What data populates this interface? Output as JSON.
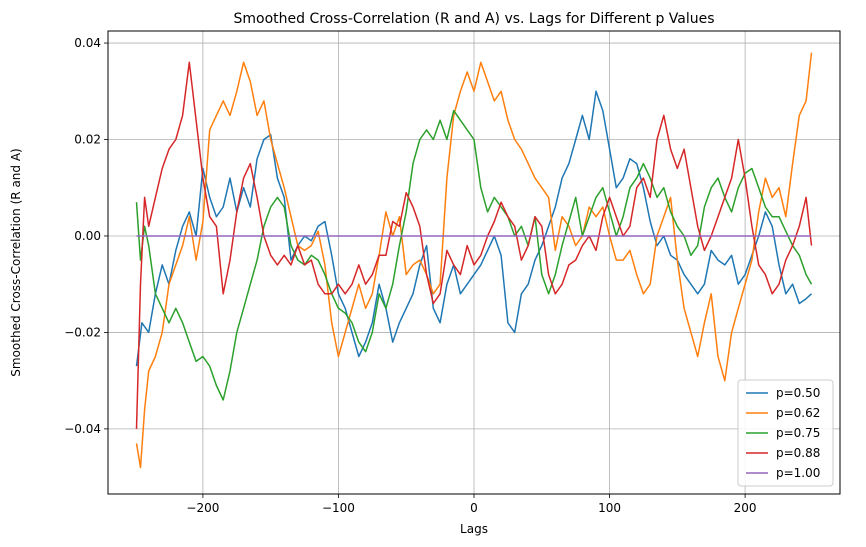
{
  "chart_data": {
    "type": "line",
    "title": "Smoothed Cross-Correlation (R and A) vs. Lags for Different p Values",
    "xlabel": "Lags",
    "ylabel": "Smoothed Cross-Correlation (R and A)",
    "xlim": [
      -270,
      270
    ],
    "ylim": [
      -0.0535,
      0.0425
    ],
    "xticks": [
      -200,
      -100,
      0,
      100,
      200
    ],
    "xtick_labels": [
      "−200",
      "−100",
      "0",
      "100",
      "200"
    ],
    "yticks": [
      -0.04,
      -0.02,
      0.0,
      0.02,
      0.04
    ],
    "ytick_labels": [
      "−0.04",
      "−0.02",
      "0.00",
      "0.02",
      "0.04"
    ],
    "grid": true,
    "legend_position": "bottom-right",
    "series": [
      {
        "name": "p=0.50",
        "color": "#1f77b4",
        "x": [
          -249,
          -245,
          -240,
          -235,
          -230,
          -225,
          -220,
          -215,
          -210,
          -205,
          -200,
          -195,
          -190,
          -185,
          -180,
          -175,
          -170,
          -165,
          -160,
          -155,
          -150,
          -145,
          -140,
          -135,
          -130,
          -125,
          -120,
          -115,
          -110,
          -105,
          -100,
          -95,
          -90,
          -85,
          -80,
          -75,
          -70,
          -65,
          -60,
          -55,
          -50,
          -45,
          -40,
          -35,
          -30,
          -25,
          -20,
          -15,
          -10,
          -5,
          0,
          5,
          10,
          15,
          20,
          25,
          30,
          35,
          40,
          45,
          50,
          55,
          60,
          65,
          70,
          75,
          80,
          85,
          90,
          95,
          100,
          105,
          110,
          115,
          120,
          125,
          130,
          135,
          140,
          145,
          150,
          155,
          160,
          165,
          170,
          175,
          180,
          185,
          190,
          195,
          200,
          205,
          210,
          215,
          220,
          225,
          230,
          235,
          240,
          245,
          249
        ],
        "values": [
          -0.027,
          -0.018,
          -0.02,
          -0.012,
          -0.006,
          -0.01,
          -0.003,
          0.002,
          0.005,
          0.0,
          0.014,
          0.008,
          0.004,
          0.006,
          0.012,
          0.005,
          0.01,
          0.006,
          0.016,
          0.02,
          0.021,
          0.012,
          0.008,
          -0.005,
          -0.002,
          0.0,
          -0.001,
          0.002,
          0.003,
          -0.004,
          -0.012,
          -0.015,
          -0.02,
          -0.025,
          -0.022,
          -0.018,
          -0.01,
          -0.015,
          -0.022,
          -0.018,
          -0.015,
          -0.012,
          -0.006,
          -0.002,
          -0.015,
          -0.018,
          -0.01,
          -0.006,
          -0.012,
          -0.01,
          -0.008,
          -0.006,
          -0.003,
          0.0,
          -0.004,
          -0.018,
          -0.02,
          -0.012,
          -0.01,
          -0.005,
          -0.002,
          0.002,
          0.006,
          0.012,
          0.015,
          0.02,
          0.025,
          0.02,
          0.03,
          0.026,
          0.018,
          0.01,
          0.012,
          0.016,
          0.015,
          0.01,
          0.003,
          -0.002,
          0.0,
          -0.004,
          -0.005,
          -0.008,
          -0.01,
          -0.012,
          -0.01,
          -0.003,
          -0.005,
          -0.006,
          -0.004,
          -0.01,
          -0.008,
          -0.004,
          0.0,
          0.005,
          0.002,
          -0.006,
          -0.012,
          -0.01,
          -0.014,
          -0.013,
          -0.012
        ]
      },
      {
        "name": "p=0.62",
        "color": "#ff7f0e",
        "x": [
          -249,
          -246,
          -243,
          -240,
          -235,
          -230,
          -225,
          -220,
          -215,
          -210,
          -205,
          -200,
          -195,
          -190,
          -185,
          -180,
          -175,
          -170,
          -165,
          -160,
          -155,
          -150,
          -145,
          -140,
          -135,
          -130,
          -125,
          -120,
          -115,
          -110,
          -105,
          -100,
          -95,
          -90,
          -85,
          -80,
          -75,
          -70,
          -65,
          -60,
          -55,
          -50,
          -45,
          -40,
          -35,
          -30,
          -25,
          -20,
          -15,
          -10,
          -5,
          0,
          5,
          10,
          15,
          20,
          25,
          30,
          35,
          40,
          45,
          50,
          55,
          60,
          65,
          70,
          75,
          80,
          85,
          90,
          95,
          100,
          105,
          110,
          115,
          120,
          125,
          130,
          135,
          140,
          145,
          150,
          155,
          160,
          165,
          170,
          175,
          180,
          185,
          190,
          195,
          200,
          205,
          210,
          215,
          220,
          225,
          230,
          235,
          240,
          245,
          249
        ],
        "values": [
          -0.043,
          -0.048,
          -0.036,
          -0.028,
          -0.025,
          -0.02,
          -0.01,
          -0.006,
          -0.002,
          0.004,
          -0.005,
          0.003,
          0.022,
          0.025,
          0.028,
          0.025,
          0.03,
          0.036,
          0.032,
          0.025,
          0.028,
          0.02,
          0.015,
          0.01,
          0.004,
          -0.002,
          -0.003,
          -0.002,
          0.001,
          -0.006,
          -0.018,
          -0.025,
          -0.02,
          -0.015,
          -0.01,
          -0.015,
          -0.012,
          -0.004,
          0.005,
          0.0,
          0.004,
          -0.008,
          -0.006,
          -0.005,
          -0.008,
          -0.012,
          -0.01,
          0.012,
          0.025,
          0.03,
          0.034,
          0.03,
          0.036,
          0.032,
          0.028,
          0.03,
          0.024,
          0.02,
          0.018,
          0.015,
          0.012,
          0.01,
          0.008,
          -0.003,
          0.004,
          0.002,
          -0.002,
          0.0,
          0.006,
          0.004,
          0.006,
          0.0,
          -0.005,
          -0.005,
          -0.003,
          -0.008,
          -0.012,
          -0.01,
          0.0,
          0.004,
          0.008,
          -0.005,
          -0.015,
          -0.02,
          -0.025,
          -0.018,
          -0.012,
          -0.025,
          -0.03,
          -0.02,
          -0.015,
          -0.01,
          -0.005,
          0.005,
          0.012,
          0.008,
          0.01,
          0.004,
          0.015,
          0.025,
          0.028,
          0.038
        ]
      },
      {
        "name": "p=0.75",
        "color": "#2ca02c",
        "x": [
          -249,
          -246,
          -243,
          -240,
          -235,
          -230,
          -225,
          -220,
          -215,
          -210,
          -205,
          -200,
          -195,
          -190,
          -185,
          -180,
          -175,
          -170,
          -165,
          -160,
          -155,
          -150,
          -145,
          -140,
          -135,
          -130,
          -125,
          -120,
          -115,
          -110,
          -105,
          -100,
          -95,
          -90,
          -85,
          -80,
          -75,
          -70,
          -65,
          -60,
          -55,
          -50,
          -45,
          -40,
          -35,
          -30,
          -25,
          -20,
          -15,
          -10,
          -5,
          0,
          5,
          10,
          15,
          20,
          25,
          30,
          35,
          40,
          45,
          50,
          55,
          60,
          65,
          70,
          75,
          80,
          85,
          90,
          95,
          100,
          105,
          110,
          115,
          120,
          125,
          130,
          135,
          140,
          145,
          150,
          155,
          160,
          165,
          170,
          175,
          180,
          185,
          190,
          195,
          200,
          205,
          210,
          215,
          220,
          225,
          230,
          235,
          240,
          245,
          249
        ],
        "values": [
          0.007,
          -0.005,
          0.002,
          -0.002,
          -0.012,
          -0.015,
          -0.018,
          -0.015,
          -0.018,
          -0.022,
          -0.026,
          -0.025,
          -0.027,
          -0.031,
          -0.034,
          -0.028,
          -0.02,
          -0.015,
          -0.01,
          -0.005,
          0.002,
          0.006,
          0.008,
          0.006,
          -0.002,
          -0.005,
          -0.006,
          -0.004,
          -0.005,
          -0.008,
          -0.012,
          -0.015,
          -0.016,
          -0.018,
          -0.022,
          -0.024,
          -0.02,
          -0.012,
          -0.015,
          -0.01,
          -0.002,
          0.005,
          0.015,
          0.02,
          0.022,
          0.02,
          0.024,
          0.02,
          0.026,
          0.024,
          0.022,
          0.02,
          0.01,
          0.005,
          0.008,
          0.006,
          0.004,
          0.0,
          0.002,
          -0.002,
          0.004,
          -0.008,
          -0.012,
          -0.008,
          -0.002,
          0.003,
          0.008,
          0.0,
          0.004,
          0.008,
          0.01,
          0.005,
          0.0,
          0.004,
          0.01,
          0.012,
          0.015,
          0.012,
          0.008,
          0.01,
          0.005,
          0.002,
          0.0,
          -0.004,
          -0.002,
          0.006,
          0.01,
          0.012,
          0.008,
          0.005,
          0.01,
          0.013,
          0.014,
          0.01,
          0.006,
          0.004,
          0.004,
          0.001,
          -0.002,
          -0.004,
          -0.008,
          -0.01
        ]
      },
      {
        "name": "p=0.88",
        "color": "#d62728",
        "x": [
          -249,
          -246,
          -243,
          -240,
          -235,
          -230,
          -225,
          -220,
          -215,
          -210,
          -205,
          -200,
          -195,
          -190,
          -185,
          -180,
          -175,
          -170,
          -165,
          -160,
          -155,
          -150,
          -145,
          -140,
          -135,
          -130,
          -125,
          -120,
          -115,
          -110,
          -105,
          -100,
          -95,
          -90,
          -85,
          -80,
          -75,
          -70,
          -65,
          -60,
          -55,
          -50,
          -45,
          -40,
          -35,
          -30,
          -25,
          -20,
          -15,
          -10,
          -5,
          0,
          5,
          10,
          15,
          20,
          25,
          30,
          35,
          40,
          45,
          50,
          55,
          60,
          65,
          70,
          75,
          80,
          85,
          90,
          95,
          100,
          105,
          110,
          115,
          120,
          125,
          130,
          135,
          140,
          145,
          150,
          155,
          160,
          165,
          170,
          175,
          180,
          185,
          190,
          195,
          200,
          205,
          210,
          215,
          220,
          225,
          230,
          235,
          240,
          245,
          249
        ],
        "values": [
          -0.04,
          -0.01,
          0.008,
          0.002,
          0.008,
          0.014,
          0.018,
          0.02,
          0.025,
          0.036,
          0.024,
          0.012,
          0.004,
          0.002,
          -0.012,
          -0.005,
          0.005,
          0.012,
          0.015,
          0.008,
          0.0,
          -0.004,
          -0.006,
          -0.004,
          -0.006,
          -0.002,
          -0.006,
          -0.005,
          -0.01,
          -0.012,
          -0.012,
          -0.01,
          -0.012,
          -0.01,
          -0.006,
          -0.01,
          -0.008,
          -0.004,
          -0.004,
          0.003,
          0.002,
          0.009,
          0.006,
          0.002,
          -0.008,
          -0.014,
          -0.012,
          -0.003,
          -0.006,
          -0.008,
          -0.002,
          -0.006,
          -0.004,
          0.0,
          0.003,
          0.007,
          0.004,
          0.002,
          -0.005,
          -0.002,
          0.004,
          0.002,
          -0.008,
          -0.012,
          -0.01,
          -0.006,
          -0.005,
          -0.002,
          0.0,
          -0.003,
          0.004,
          0.008,
          0.004,
          0.0,
          0.002,
          0.01,
          0.012,
          0.008,
          0.02,
          0.025,
          0.018,
          0.014,
          0.018,
          0.01,
          0.002,
          -0.003,
          0.0,
          0.004,
          0.008,
          0.012,
          0.02,
          0.012,
          0.002,
          -0.006,
          -0.008,
          -0.012,
          -0.01,
          -0.005,
          -0.002,
          0.002,
          0.008,
          -0.002
        ]
      },
      {
        "name": "p=1.00",
        "color": "#9467bd",
        "x": [
          -249,
          249
        ],
        "values": [
          0.0,
          0.0
        ]
      }
    ]
  }
}
